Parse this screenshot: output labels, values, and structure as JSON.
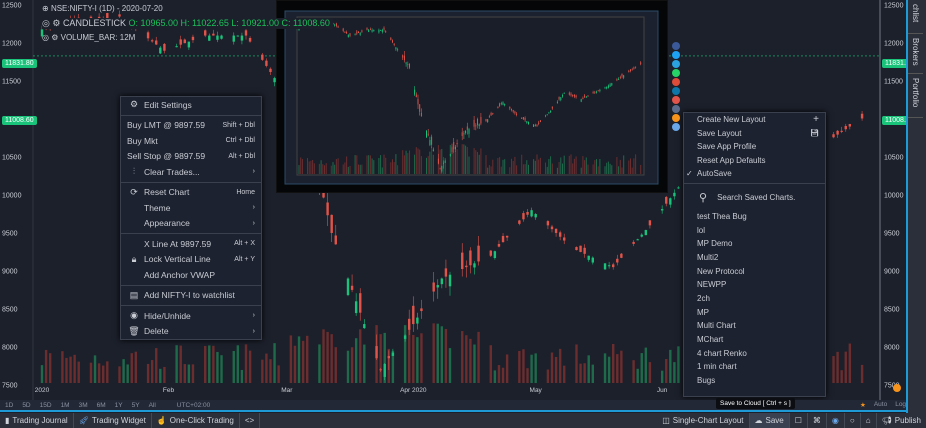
{
  "colors": {
    "up": "#19c37a",
    "down": "#e2544a",
    "accent": "#1e9bd7",
    "bg": "#1c202b"
  },
  "legend": {
    "symbol": "NSE:NIFTY-I (1D) - 2020-07-20",
    "candle_label": "CANDLESTICK",
    "o": "O: 10965.00",
    "h": "H: 11022.65",
    "l": "L: 10921.00",
    "c": "C: 11008.60",
    "volume": "VOLUME_BAR: 12M"
  },
  "price_axis": {
    "ticks": [
      12500,
      12000,
      11500,
      11000,
      10500,
      10000,
      9500,
      9000,
      8500,
      8000,
      7500
    ],
    "range": [
      7300,
      12700
    ],
    "last_price": "11008.60",
    "line_price": "11831.80"
  },
  "time_axis": {
    "labels": [
      "2020",
      "Feb",
      "Mar",
      "Apr 2020",
      "May",
      "Jun"
    ]
  },
  "price_path": [
    [
      "2020-01-01",
      12180
    ],
    [
      "2020-01-20",
      12350
    ],
    [
      "2020-01-31",
      11900
    ],
    [
      "2020-02-10",
      12100
    ],
    [
      "2020-02-20",
      12100
    ],
    [
      "2020-03-01",
      11300
    ],
    [
      "2020-03-06",
      10900
    ],
    [
      "2020-03-12",
      9500
    ],
    [
      "2020-03-24",
      7700
    ],
    [
      "2020-04-01",
      8300
    ],
    [
      "2020-04-08",
      8900
    ],
    [
      "2020-04-20",
      9200
    ],
    [
      "2020-04-30",
      9800
    ],
    [
      "2020-05-10",
      9300
    ],
    [
      "2020-05-20",
      9050
    ],
    [
      "2020-05-29",
      9600
    ],
    [
      "2020-06-05",
      10100
    ],
    [
      "2020-06-15",
      9900
    ],
    [
      "2020-06-30",
      10300
    ],
    [
      "2020-07-20",
      11008
    ]
  ],
  "timeframes": [
    "1D",
    "5D",
    "15D",
    "1M",
    "3M",
    "6M",
    "1Y",
    "5Y",
    "All",
    "UTC+02:00"
  ],
  "context_menu": {
    "edit": "Edit Settings",
    "buy_lmt": "Buy LMT @ 9897.59",
    "buy_lmt_sc": "Shift + Dbl",
    "buy_mkt": "Buy Mkt",
    "buy_mkt_sc": "Ctrl + Dbl",
    "sell_stop": "Sell Stop @ 9897.59",
    "sell_stop_sc": "Alt + Dbl",
    "clear": "Clear Trades...",
    "reset": "Reset Chart",
    "reset_sc": "Home",
    "theme": "Theme",
    "appearance": "Appearance",
    "xline": "X Line At 9897.59",
    "xline_sc": "Alt + X",
    "lock": "Lock Vertical Line",
    "lock_sc": "Alt + Y",
    "vwap": "Add Anchor VWAP",
    "watch": "Add NIFTY-I to watchlist",
    "hide": "Hide/Unhide",
    "delete": "Delete"
  },
  "save_menu": {
    "create": "Create New Layout",
    "save": "Save Layout",
    "profile": "Save App Profile",
    "reset": "Reset App Defaults",
    "autosave": "AutoSave",
    "search_placeholder": "Search Saved Charts.",
    "charts": [
      "test Thea Bug",
      "lol",
      "MP Demo",
      "Multi2",
      "New Protocol",
      "NEWPP",
      "2ch",
      "MP",
      "Multi Chart",
      "MChart",
      "4 chart Renko",
      "1 min chart",
      "Bugs"
    ]
  },
  "tooltip": "Save to Cloud [ Ctrl + s ]",
  "bottom": {
    "journal": "Trading Journal",
    "widget": "Trading Widget",
    "oneclick": "One-Click Trading",
    "code": "<>",
    "layout": "Single-Chart Layout",
    "save": "Save",
    "publish": "Publish",
    "auto": "Auto",
    "log": "Log"
  },
  "dock": {
    "watchlist": "chlist",
    "brokers": "Brokers",
    "portfolio": "Portfolio"
  },
  "social_colors": [
    "#3b5998",
    "#1da1f2",
    "#2aa3e0",
    "#25d366",
    "#dd4b39",
    "#0e76a8",
    "#e2544a",
    "#5a6b8c",
    "#f7931a",
    "#6aa7e8"
  ]
}
